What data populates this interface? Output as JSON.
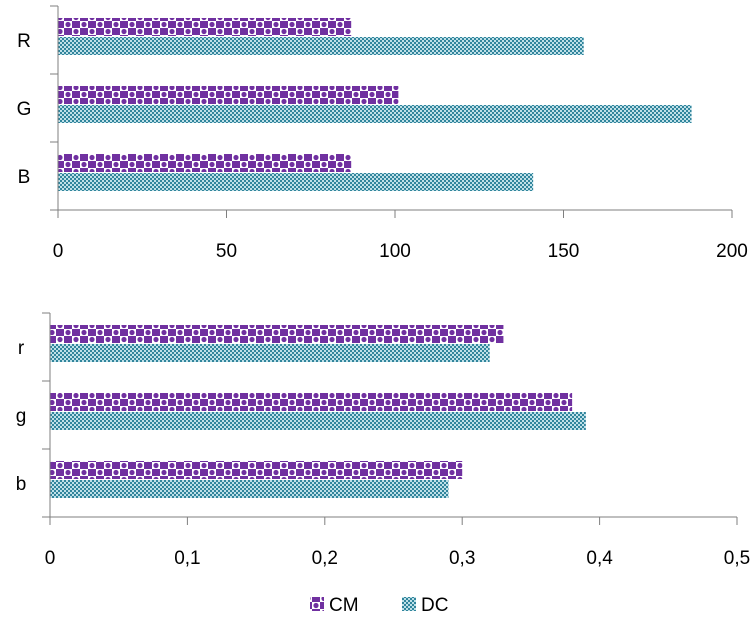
{
  "colors": {
    "cm_fill": "#7030a0",
    "dc_fill": "#31859c",
    "axis": "#7f7f7f",
    "background": "#ffffff"
  },
  "legend": {
    "placement": "bottom",
    "items": [
      {
        "label": "CM",
        "pattern": "purple-checker",
        "color": "#7030a0"
      },
      {
        "label": "DC",
        "pattern": "teal-dotted-grid",
        "color": "#31859c"
      }
    ]
  },
  "chart_data": [
    {
      "type": "bar",
      "orientation": "horizontal",
      "categories": [
        "R",
        "G",
        "B"
      ],
      "series": [
        {
          "name": "CM",
          "values": [
            87,
            101,
            87
          ]
        },
        {
          "name": "DC",
          "values": [
            156,
            188,
            141
          ]
        }
      ],
      "xlim": [
        0,
        200
      ],
      "xticks": [
        "0",
        "50",
        "100",
        "150",
        "200"
      ],
      "grid": false,
      "title": "",
      "xlabel": "",
      "ylabel": ""
    },
    {
      "type": "bar",
      "orientation": "horizontal",
      "categories": [
        "r",
        "g",
        "b"
      ],
      "series": [
        {
          "name": "CM",
          "values": [
            0.33,
            0.38,
            0.3
          ]
        },
        {
          "name": "DC",
          "values": [
            0.32,
            0.39,
            0.29
          ]
        }
      ],
      "xlim": [
        0,
        0.5
      ],
      "xticks": [
        "0",
        "0,1",
        "0,2",
        "0,3",
        "0,4",
        "0,5"
      ],
      "grid": false,
      "title": "",
      "xlabel": "",
      "ylabel": ""
    }
  ]
}
